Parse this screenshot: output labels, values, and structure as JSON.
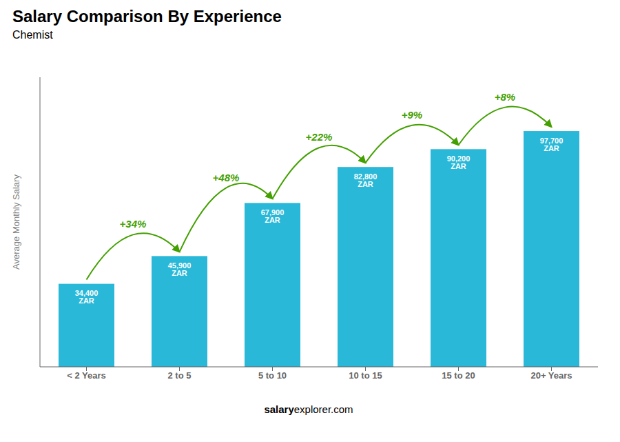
{
  "chart_data": {
    "type": "bar",
    "title": "Salary Comparison By Experience",
    "subtitle": "Chemist",
    "categories": [
      "< 2 Years",
      "2 to 5",
      "5 to 10",
      "10 to 15",
      "15 to 20",
      "20+ Years"
    ],
    "values": [
      34400,
      45900,
      67900,
      82800,
      90200,
      97700
    ],
    "value_labels": [
      "34,400 ZAR",
      "45,900 ZAR",
      "67,900 ZAR",
      "82,800 ZAR",
      "90,200 ZAR",
      "97,700 ZAR"
    ],
    "data_labels": true,
    "color": "#29b8d8",
    "ylabel": "Average Monthly Salary",
    "ylim": [
      0,
      120000
    ],
    "tick_labels": "x",
    "annotations": [
      {
        "text": "+34%",
        "from": "< 2 Years",
        "to": "2 to 5",
        "color": "#43a000"
      },
      {
        "text": "+48%",
        "from": "2 to 5",
        "to": "5 to 10",
        "color": "#43a000"
      },
      {
        "text": "+22%",
        "from": "5 to 10",
        "to": "10 to 15",
        "color": "#43a000"
      },
      {
        "text": "+9%",
        "from": "10 to 15",
        "to": "15 to 20",
        "color": "#43a000"
      },
      {
        "text": "+8%",
        "from": "15 to 20",
        "to": "20+ Years",
        "color": "#43a000"
      }
    ],
    "footer": [
      "salary",
      "explorer.com"
    ]
  }
}
